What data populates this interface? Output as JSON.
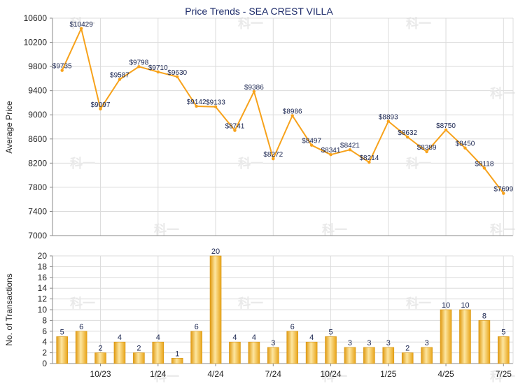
{
  "chart_data": [
    {
      "type": "line",
      "title": "Price Trends - SEA CREST VILLA",
      "ylabel": "Average Price",
      "ylim": [
        7000,
        10600
      ],
      "yticks": [
        7000,
        7400,
        7800,
        8200,
        8600,
        9000,
        9400,
        9800,
        10200,
        10600
      ],
      "grid": true,
      "color": "#f7a21b",
      "values": [
        9735,
        10429,
        9097,
        9587,
        9798,
        9710,
        9630,
        9142,
        9133,
        8741,
        9386,
        8272,
        8986,
        8497,
        8341,
        8421,
        8214,
        8893,
        8632,
        8389,
        8750,
        8450,
        8118,
        7699
      ],
      "data_labels": [
        "$9735",
        "$10429",
        "$9097",
        "$9587",
        "$9798",
        "$9710",
        "$9630",
        "$9142",
        "$9133",
        "$8741",
        "$9386",
        "$8272",
        "$8986",
        "$8497",
        "$8341",
        "$8421",
        "$8214",
        "$8893",
        "$8632",
        "$8389",
        "$8750",
        "$8450",
        "$8118",
        "$7699"
      ]
    },
    {
      "type": "bar",
      "ylabel": "No. of Transactions",
      "ylim": [
        0,
        20
      ],
      "yticks": [
        0,
        2,
        4,
        6,
        8,
        10,
        12,
        14,
        16,
        18,
        20
      ],
      "grid": true,
      "color": "#f5b624",
      "values": [
        5,
        6,
        2,
        4,
        2,
        4,
        1,
        6,
        20,
        4,
        4,
        3,
        6,
        4,
        5,
        3,
        3,
        3,
        2,
        3,
        10,
        10,
        8,
        5
      ],
      "x_tick_labels": [
        {
          "label": "10/23",
          "index": 2
        },
        {
          "label": "1/24",
          "index": 5
        },
        {
          "label": "4/24",
          "index": 8
        },
        {
          "label": "7/24",
          "index": 11
        },
        {
          "label": "10/24",
          "index": 14
        },
        {
          "label": "1/25",
          "index": 17
        },
        {
          "label": "4/25",
          "index": 20
        },
        {
          "label": "7/25",
          "index": 23
        }
      ]
    }
  ],
  "watermark": "科一"
}
